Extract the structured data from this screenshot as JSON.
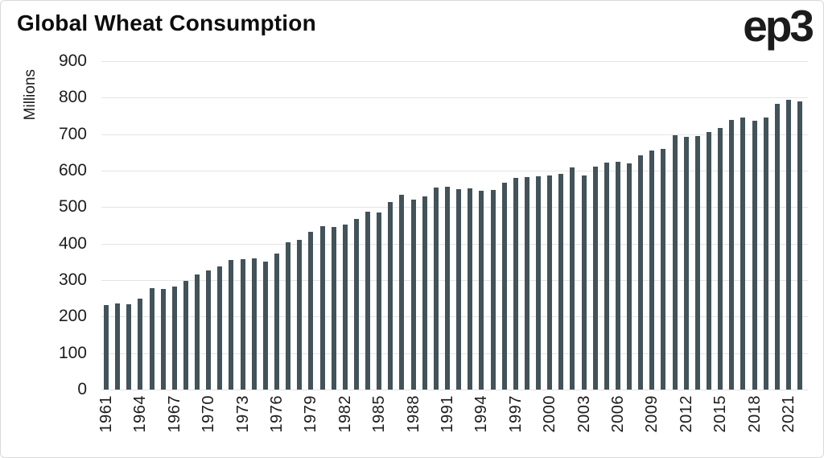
{
  "header": {
    "title": "Global Wheat Consumption",
    "logo_text": "ep3"
  },
  "chart_data": {
    "type": "bar",
    "title": "Global Wheat Consumption",
    "ylabel": "Millions",
    "xlabel": "",
    "ylim": [
      0,
      900
    ],
    "ytick_interval": 100,
    "grid": true,
    "legend": false,
    "xtick_interval": 3,
    "x_tick_labels": [
      "1961",
      "1964",
      "1967",
      "1970",
      "1973",
      "1976",
      "1979",
      "1982",
      "1985",
      "1988",
      "1991",
      "1994",
      "1997",
      "2000",
      "2003",
      "2006",
      "2009",
      "2012",
      "2015",
      "2018",
      "2021"
    ],
    "years": [
      1961,
      1962,
      1963,
      1964,
      1965,
      1966,
      1967,
      1968,
      1969,
      1970,
      1971,
      1972,
      1973,
      1974,
      1975,
      1976,
      1977,
      1978,
      1979,
      1980,
      1981,
      1982,
      1983,
      1984,
      1985,
      1986,
      1987,
      1988,
      1989,
      1990,
      1991,
      1992,
      1993,
      1994,
      1995,
      1996,
      1997,
      1998,
      1999,
      2000,
      2001,
      2002,
      2003,
      2004,
      2005,
      2006,
      2007,
      2008,
      2009,
      2010,
      2011,
      2012,
      2013,
      2014,
      2015,
      2016,
      2017,
      2018,
      2019,
      2020,
      2021,
      2022
    ],
    "values": [
      232,
      237,
      234,
      250,
      277,
      275,
      283,
      297,
      315,
      327,
      337,
      356,
      357,
      359,
      351,
      374,
      403,
      410,
      432,
      448,
      446,
      452,
      467,
      487,
      486,
      515,
      535,
      521,
      530,
      554,
      556,
      549,
      551,
      546,
      547,
      567,
      580,
      582,
      585,
      587,
      591,
      608,
      587,
      611,
      623,
      625,
      619,
      641,
      656,
      659,
      697,
      692,
      695,
      706,
      718,
      739,
      745,
      736,
      745,
      784,
      794,
      790
    ],
    "bar_color": "#425359",
    "gridline_color": "#e4e4e4",
    "text_color": "#1c1c1c",
    "background_color": "#ffffff"
  }
}
